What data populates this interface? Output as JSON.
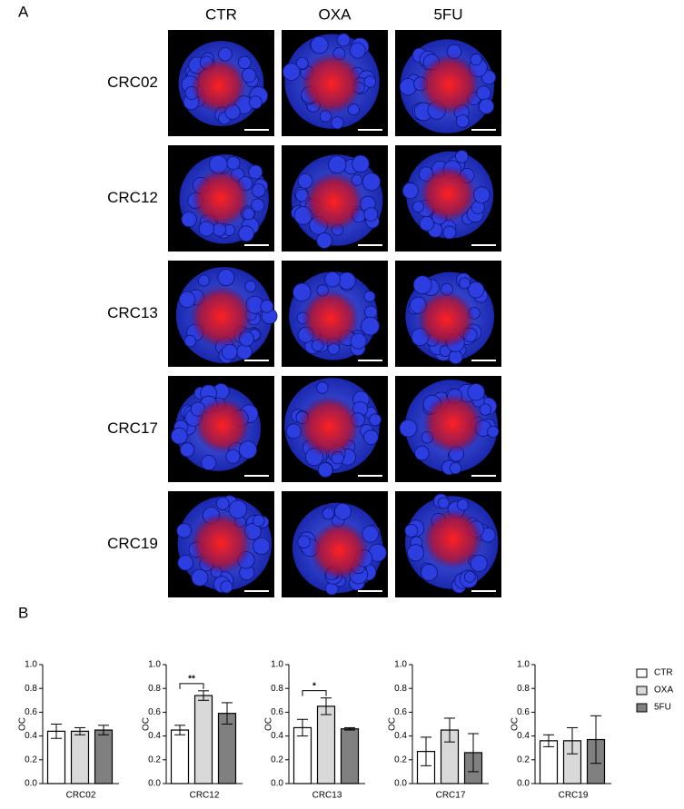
{
  "panel_a": {
    "label": "A",
    "columns": [
      "CTR",
      "OXA",
      "5FU"
    ],
    "rows": [
      "CRC02",
      "CRC12",
      "CRC13",
      "CRC17",
      "CRC19"
    ]
  },
  "panel_b": {
    "label": "B"
  },
  "legend": [
    {
      "name": "CTR",
      "color": "#ffffff"
    },
    {
      "name": "OXA",
      "color": "#d9d9d9"
    },
    {
      "name": "5FU",
      "color": "#808080"
    }
  ],
  "chart_data": [
    {
      "type": "bar",
      "xlabel": "CRC02",
      "ylabel": "OC",
      "values": [
        0.44,
        0.44,
        0.45
      ],
      "errors": [
        0.06,
        0.03,
        0.04
      ],
      "ylim": [
        0,
        1
      ],
      "yticks": [
        {
          "value": 0,
          "label": "0.0"
        },
        0.2,
        0.4,
        0.6,
        0.8,
        {
          "value": 1,
          "label": "1.0"
        }
      ]
    },
    {
      "type": "bar",
      "xlabel": "CRC12",
      "ylabel": "OC",
      "values": [
        0.45,
        0.74,
        0.59
      ],
      "errors": [
        0.04,
        0.04,
        0.09
      ],
      "annotation": "**",
      "ylim": [
        0,
        1
      ],
      "yticks": [
        {
          "value": 0,
          "label": "0.0"
        },
        0.2,
        0.4,
        0.6,
        0.8,
        {
          "value": 1,
          "label": "1.0"
        }
      ]
    },
    {
      "type": "bar",
      "xlabel": "CRC13",
      "ylabel": "OC",
      "values": [
        0.47,
        0.65,
        0.46
      ],
      "errors": [
        0.07,
        0.07,
        0.01
      ],
      "annotation": "*",
      "ylim": [
        0,
        1
      ],
      "yticks": [
        {
          "value": 0,
          "label": "0.0"
        },
        0.2,
        0.4,
        0.6,
        0.8,
        {
          "value": 1,
          "label": "1.0"
        }
      ]
    },
    {
      "type": "bar",
      "xlabel": "CRC17",
      "ylabel": "OC",
      "values": [
        0.27,
        0.45,
        0.26
      ],
      "errors": [
        0.12,
        0.1,
        0.16
      ],
      "ylim": [
        0,
        1
      ],
      "yticks": [
        {
          "value": 0,
          "label": "0.0"
        },
        0.2,
        0.4,
        0.6,
        0.8,
        {
          "value": 1,
          "label": "1.0"
        }
      ]
    },
    {
      "type": "bar",
      "xlabel": "CRC19",
      "ylabel": "OC",
      "values": [
        0.36,
        0.36,
        0.37
      ],
      "errors": [
        0.05,
        0.11,
        0.2
      ],
      "ylim": [
        0,
        1
      ],
      "yticks": [
        {
          "value": 0,
          "label": "0.0"
        },
        0.2,
        0.4,
        0.6,
        0.8,
        {
          "value": 1,
          "label": "1.0"
        }
      ]
    }
  ]
}
